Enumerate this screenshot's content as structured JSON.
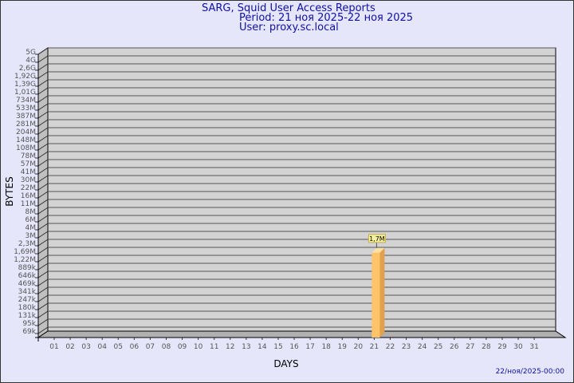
{
  "header": {
    "title": "SARG, Squid User Access Reports",
    "period": "Period: 21 ноя 2025-22 ноя 2025",
    "user": "User: proxy.sc.local"
  },
  "timestamp": "22/ноя/2025-00:00",
  "colors": {
    "background": "#e6e6fa",
    "plot": "#d3d3d3",
    "bar": "#ffc46a",
    "bar_side": "#e0a04c",
    "title": "#1010a0"
  },
  "chart_data": {
    "type": "bar",
    "title": "SARG, Squid User Access Reports",
    "xlabel": "DAYS",
    "ylabel": "BYTES",
    "y_scale": "log",
    "grid": true,
    "y_ticks": [
      "69k",
      "95k",
      "131k",
      "180k",
      "247k",
      "341k",
      "469k",
      "646k",
      "889k",
      "1,22M",
      "1,69M",
      "2,3M",
      "3M",
      "4M",
      "6M",
      "8M",
      "11M",
      "16M",
      "22M",
      "30M",
      "41M",
      "57M",
      "78M",
      "108M",
      "148M",
      "204M",
      "281M",
      "387M",
      "533M",
      "734M",
      "1,01G",
      "1,39G",
      "1,92G",
      "2,6G",
      "4G",
      "5G"
    ],
    "y_tick_values": [
      69000,
      95000,
      131000,
      180000,
      247000,
      341000,
      469000,
      646000,
      889000,
      1220000,
      1690000,
      2300000,
      3000000,
      4000000,
      6000000,
      8000000,
      11000000,
      16000000,
      22000000,
      30000000,
      41000000,
      57000000,
      78000000,
      108000000,
      148000000,
      204000000,
      281000000,
      387000000,
      533000000,
      734000000,
      1010000000,
      1390000000,
      1920000000,
      2600000000,
      4000000000,
      5000000000
    ],
    "categories": [
      "01",
      "02",
      "03",
      "04",
      "05",
      "06",
      "07",
      "08",
      "09",
      "10",
      "11",
      "12",
      "13",
      "14",
      "15",
      "16",
      "17",
      "18",
      "19",
      "20",
      "21",
      "22",
      "23",
      "24",
      "25",
      "26",
      "27",
      "28",
      "29",
      "30",
      "31"
    ],
    "bars": [
      {
        "day": "21",
        "value": 1700000,
        "label": "1,7M"
      }
    ]
  }
}
